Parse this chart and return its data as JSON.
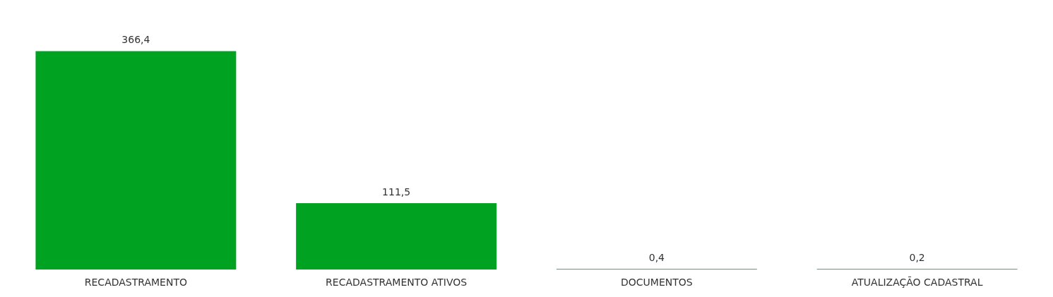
{
  "chart_data": {
    "type": "bar",
    "categories": [
      "RECADASTRAMENTO",
      "RECADASTRAMENTO ATIVOS",
      "DOCUMENTOS",
      "ATUALIZAÇÃO CADASTRAL"
    ],
    "values": [
      366.4,
      111.5,
      0.4,
      0.2
    ],
    "value_labels": [
      "366,4",
      "111,5",
      "0,4",
      "0,2"
    ],
    "color": "#00a321",
    "tick_labels": "x",
    "grid": false,
    "legend": false
  }
}
